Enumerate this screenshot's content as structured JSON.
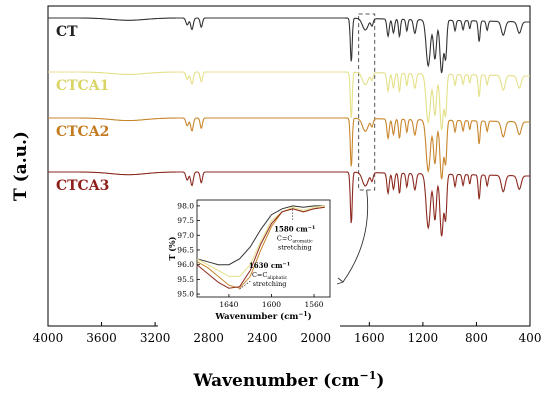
{
  "chart_data": {
    "type": "line",
    "xlabel": "Wavenumber (cm",
    "xlabel_sup": "−1",
    "xlabel_close": ")",
    "ylabel": "T (a.u.)",
    "xlim": [
      4000,
      400
    ],
    "x_reversed": true,
    "x_ticks": [
      "4000",
      "3600",
      "3200",
      "2800",
      "2400",
      "2000",
      "1600",
      "1200",
      "800",
      "400"
    ],
    "x_tick_values": [
      4000,
      3600,
      3200,
      2800,
      2400,
      2000,
      1600,
      1200,
      800,
      400
    ],
    "series": [
      {
        "name": "CT",
        "color": "#333333",
        "label_color": "#222222",
        "baseline": 0.0
      },
      {
        "name": "CTCA1",
        "color": "#e4e08a",
        "label_color": "#d9d466",
        "baseline": 1.0
      },
      {
        "name": "CTCA2",
        "color": "#c8862c",
        "label_color": "#c47a1e",
        "baseline": 2.0
      },
      {
        "name": "CTCA3",
        "color": "#8c2a20",
        "label_color": "#8e1f1b",
        "baseline": 3.0
      }
    ],
    "highlight_region": {
      "x_from": 1680,
      "x_to": 1560
    },
    "inset": {
      "xlabel": "Wavenumber (cm",
      "xlabel_sup": "−1",
      "xlabel_close": ")",
      "ylabel": "T (%)",
      "xlim": [
        1670,
        1545
      ],
      "ylim": [
        94.9,
        98.2
      ],
      "x_ticks": [
        "1640",
        "1600",
        "1560"
      ],
      "x_tick_values": [
        1640,
        1600,
        1560
      ],
      "y_ticks": [
        "98.0",
        "97.5",
        "97.0",
        "96.5",
        "96.0",
        "95.5",
        "95.0"
      ],
      "y_tick_values": [
        98.0,
        97.5,
        97.0,
        96.5,
        96.0,
        95.5,
        95.0
      ],
      "annotations": [
        {
          "label": "1580 cm",
          "sup": "−1",
          "line2_main": "C=C",
          "line2_sub": "aromatic",
          "line3": "stretching",
          "x": 1580,
          "y": 97.95
        },
        {
          "label": "1630 cm",
          "sup": "−1",
          "line2_main": "C=C",
          "line2_sub": "aliphatic",
          "line3": "stretching",
          "x": 1630,
          "y": 95.2
        }
      ],
      "series": [
        {
          "name": "CT",
          "color": "#333333",
          "x": [
            1670,
            1660,
            1650,
            1640,
            1630,
            1620,
            1610,
            1600,
            1590,
            1580,
            1570,
            1560,
            1550
          ],
          "y": [
            96.2,
            96.1,
            96.0,
            96.0,
            96.2,
            96.6,
            97.2,
            97.7,
            97.9,
            98.0,
            97.95,
            98.0,
            98.0
          ]
        },
        {
          "name": "CTCA1",
          "color": "#e4e08a",
          "x": [
            1670,
            1660,
            1650,
            1640,
            1630,
            1620,
            1610,
            1600,
            1590,
            1580,
            1570,
            1560,
            1550
          ],
          "y": [
            96.2,
            96.0,
            95.8,
            95.6,
            95.6,
            96.0,
            96.8,
            97.5,
            97.8,
            97.95,
            97.85,
            97.95,
            98.0
          ]
        },
        {
          "name": "CTCA2",
          "color": "#c8862c",
          "x": [
            1670,
            1660,
            1650,
            1640,
            1630,
            1620,
            1610,
            1600,
            1590,
            1580,
            1570,
            1560,
            1550
          ],
          "y": [
            96.1,
            95.9,
            95.6,
            95.3,
            95.2,
            95.6,
            96.5,
            97.3,
            97.8,
            97.9,
            97.8,
            97.9,
            97.95
          ]
        },
        {
          "name": "CTCA3",
          "color": "#8c2a20",
          "x": [
            1670,
            1660,
            1650,
            1640,
            1630,
            1620,
            1610,
            1600,
            1590,
            1580,
            1570,
            1560,
            1550
          ],
          "y": [
            96.0,
            95.7,
            95.4,
            95.2,
            95.25,
            95.8,
            96.7,
            97.4,
            97.8,
            97.9,
            97.8,
            97.9,
            97.95
          ]
        }
      ]
    }
  }
}
